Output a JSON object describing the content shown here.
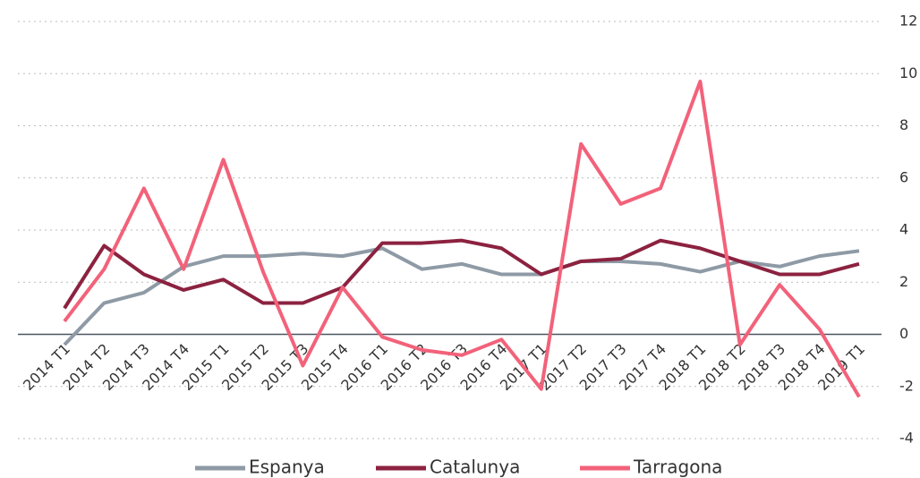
{
  "chart_data": {
    "type": "line",
    "categories": [
      "2014 T1",
      "2014 T2",
      "2014 T3",
      "2014 T4",
      "2015 T1",
      "2015 T2",
      "2015 T3",
      "2015 T4",
      "2016 T1",
      "2016 T2",
      "2016 T3",
      "2016 T4",
      "2017 T1",
      "2017 T2",
      "2017 T3",
      "2017 T4",
      "2018 T1",
      "2018 T2",
      "2018 T3",
      "2018 T4",
      "2019 T1"
    ],
    "series": [
      {
        "name": "Espanya",
        "color": "#8e9aa5",
        "values": [
          -0.4,
          1.2,
          1.6,
          2.6,
          3.0,
          3.0,
          3.1,
          3.0,
          3.3,
          2.5,
          2.7,
          2.3,
          2.3,
          2.8,
          2.8,
          2.7,
          2.4,
          2.8,
          2.6,
          3.0,
          3.2
        ]
      },
      {
        "name": "Catalunya",
        "color": "#8c2240",
        "values": [
          1.0,
          3.4,
          2.3,
          1.7,
          2.1,
          1.2,
          1.2,
          1.8,
          3.5,
          3.5,
          3.6,
          3.3,
          2.3,
          2.8,
          2.9,
          3.6,
          3.3,
          2.8,
          2.3,
          2.3,
          2.7
        ]
      },
      {
        "name": "Tarragona",
        "color": "#f2627a",
        "values": [
          0.5,
          2.5,
          5.6,
          2.5,
          6.7,
          2.4,
          -1.2,
          1.8,
          -0.1,
          -0.6,
          -0.8,
          -0.2,
          -2.1,
          7.3,
          5.0,
          5.6,
          9.7,
          -0.4,
          1.9,
          0.2,
          -2.4
        ]
      }
    ],
    "ylim": [
      -4,
      12
    ],
    "yticks": [
      -4,
      -2,
      0,
      2,
      4,
      6,
      8,
      10,
      12
    ],
    "grid": true,
    "legend": "bottom"
  }
}
